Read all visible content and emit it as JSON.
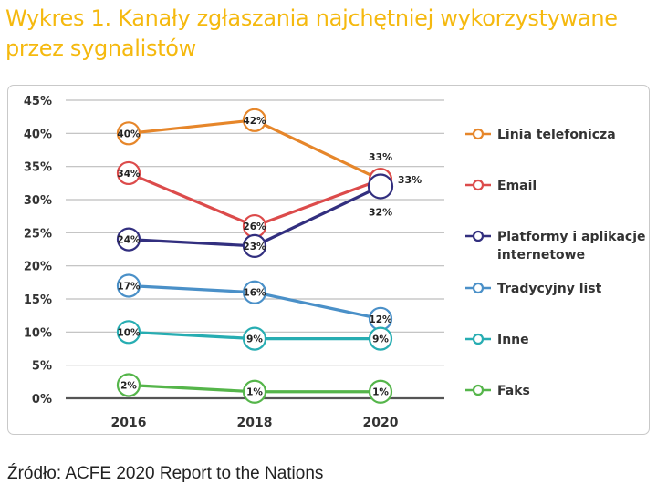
{
  "title": "Wykres 1. Kanały zgłaszania najchętniej wykorzystywane przez sygnalistów",
  "source": "Źródło: ACFE 2020 Report to the Nations",
  "chart_data": {
    "type": "line",
    "x": [
      "2016",
      "2018",
      "2020"
    ],
    "ylim": [
      0,
      45
    ],
    "yticks": [
      "0%",
      "5%",
      "10%",
      "15%",
      "20%",
      "25%",
      "30%",
      "35%",
      "40%",
      "45%"
    ],
    "grid": true,
    "legend_position": "right",
    "series": [
      {
        "name": "Linia telefonicza",
        "color": "#e6862a",
        "values": [
          40,
          42,
          33
        ],
        "labels": [
          "40%",
          "42%",
          "33%"
        ]
      },
      {
        "name": "Email",
        "color": "#dc4b4b",
        "values": [
          34,
          26,
          33
        ],
        "labels": [
          "34%",
          "26%",
          "33%"
        ]
      },
      {
        "name": "Platformy i aplikacje internetowe",
        "color": "#322f7f",
        "values": [
          24,
          23,
          32
        ],
        "labels": [
          "24%",
          "23%",
          "32%"
        ]
      },
      {
        "name": "Tradycyjny list",
        "color": "#4a90c8",
        "values": [
          17,
          16,
          12
        ],
        "labels": [
          "17%",
          "16%",
          "12%"
        ]
      },
      {
        "name": "Inne",
        "color": "#27adb2",
        "values": [
          10,
          9,
          9
        ],
        "labels": [
          "10%",
          "9%",
          "9%"
        ]
      },
      {
        "name": "Faks",
        "color": "#55b54a",
        "values": [
          2,
          1,
          1
        ],
        "labels": [
          "2%",
          "1%",
          "1%"
        ]
      }
    ]
  }
}
